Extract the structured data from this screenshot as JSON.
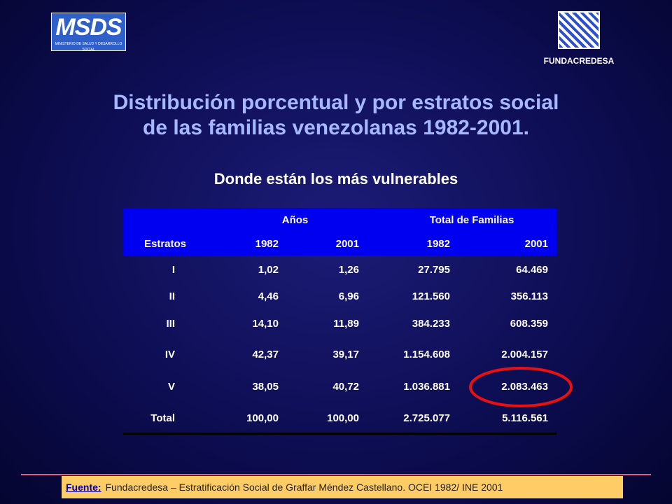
{
  "logos": {
    "left": {
      "title": "MSDS",
      "subtitle": "MINISTERIO DE SALUD Y DESARROLLO SOCIAL"
    },
    "right": {
      "label": "FUNDACREDESA"
    }
  },
  "header": {
    "title_lines": [
      "Distribución porcentual y por estratos social",
      "de las familias venezolanas 1982-2001."
    ],
    "subtitle": "Donde están los más vulnerables"
  },
  "table": {
    "group_headers": [
      "Años",
      "Total de Familias"
    ],
    "columns": [
      "Estratos",
      "1982",
      "2001",
      "1982",
      "2001"
    ],
    "rows": [
      [
        "I",
        "1,02",
        "1,26",
        "27.795",
        "64.469"
      ],
      [
        "II",
        "4,46",
        "6,96",
        "121.560",
        "356.113"
      ],
      [
        "III",
        "14,10",
        "11,89",
        "384.233",
        "608.359"
      ],
      [
        "IV",
        "42,37",
        "39,17",
        "1.154.608",
        "2.004.157"
      ],
      [
        "V",
        "38,05",
        "40,72",
        "1.036.881",
        "2.083.463"
      ],
      [
        "Total",
        "100,00",
        "100,00",
        "2.725.077",
        "5.116.561"
      ]
    ]
  },
  "footer": {
    "label": "Fuente:",
    "text": "Fundacredesa – Estratificación Social de Graffar Méndez Castellano. OCEI 1982/ INE 2001"
  }
}
